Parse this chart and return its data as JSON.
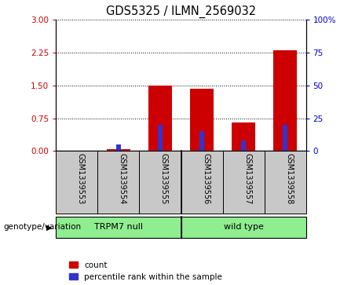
{
  "title": "GDS5325 / ILMN_2569032",
  "samples": [
    "GSM1339553",
    "GSM1339554",
    "GSM1339555",
    "GSM1339556",
    "GSM1339557",
    "GSM1339558"
  ],
  "count_values": [
    0.0,
    0.05,
    1.5,
    1.42,
    0.65,
    2.3
  ],
  "percentile_values": [
    0.0,
    5.0,
    20.0,
    15.0,
    8.0,
    20.0
  ],
  "group_spans": [
    {
      "label": "TRPM7 null",
      "start": 0,
      "end": 2
    },
    {
      "label": "wild type",
      "start": 3,
      "end": 5
    }
  ],
  "group_label": "genotype/variation",
  "group_color": "#90EE90",
  "left_yticks": [
    0,
    0.75,
    1.5,
    2.25,
    3.0
  ],
  "right_yticks": [
    0,
    25,
    50,
    75,
    100
  ],
  "left_ylim": [
    0,
    3.0
  ],
  "right_ylim": [
    0,
    100
  ],
  "bar_color_red": "#CC0000",
  "bar_color_blue": "#3333CC",
  "bg_color_samples": "#C8C8C8",
  "bg_color_plot": "#FFFFFF",
  "left_axis_color": "#CC0000",
  "right_axis_color": "#0000CC",
  "legend_count": "count",
  "legend_percentile": "percentile rank within the sample",
  "red_bar_width": 0.55,
  "blue_bar_width": 0.12
}
